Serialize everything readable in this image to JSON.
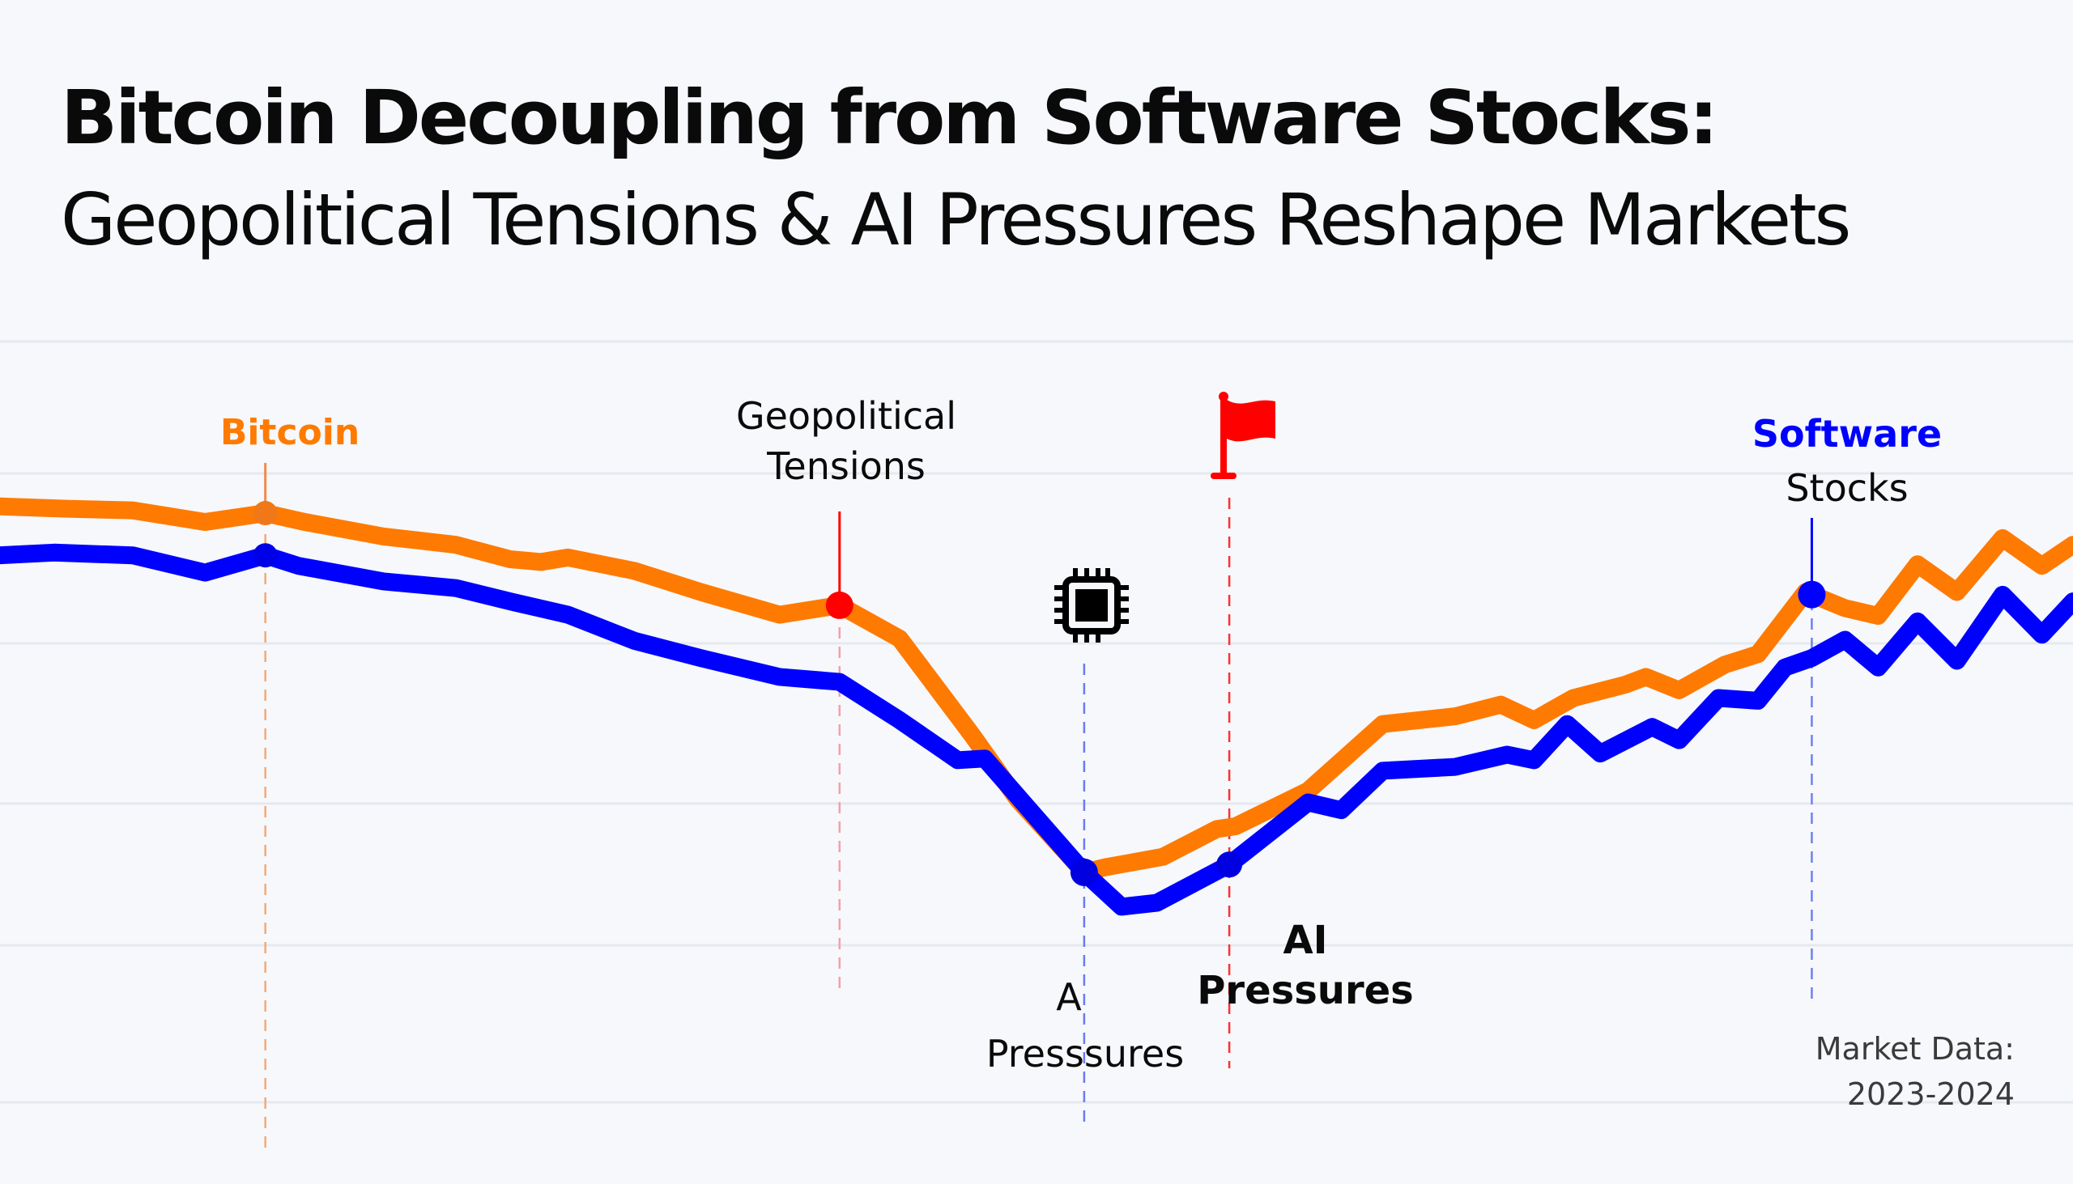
{
  "title": "Bitcoin Decoupling from Software Stocks:",
  "subtitle": "Geopolitical Tensions & AI Pressures Reshape Markets",
  "colors": {
    "bitcoin": "#ff7a00",
    "software": "#0000ff",
    "alert": "#ff0000",
    "grid": "#e6e9ef",
    "text": "#0a0a0a"
  },
  "annotations": {
    "bitcoin_label": "Bitcoin",
    "geopolitical_line1": "Geopolitical",
    "geopolitical_line2": "Tensions",
    "software_line1": "Software",
    "software_line2": "Stocks",
    "ai_left_line1": "A",
    "ai_left_line2": "Presssures",
    "ai_right_line1": "AI",
    "ai_right_line2": "Pressures",
    "icons": [
      "cpu-chip-icon",
      "red-flag-icon"
    ]
  },
  "footnote": {
    "line1": "Market Data:",
    "line2": "2023-2024"
  },
  "chart_data": {
    "type": "line",
    "title": "Bitcoin Decoupling from Software Stocks: Geopolitical Tensions & AI Pressures Reshape Markets",
    "xlabel": "",
    "ylabel": "",
    "xlim": [
      0,
      100
    ],
    "ylim": [
      0,
      100
    ],
    "grid": true,
    "x_axis_note": "Market Data: 2023-2024",
    "series": [
      {
        "name": "Bitcoin",
        "color": "#ff7a00",
        "x": [
          0,
          3.2,
          6.4,
          9.9,
          12.8,
          14.7,
          18.5,
          22.0,
          24.6,
          26.1,
          27.4,
          30.6,
          33.8,
          37.6,
          40.5,
          43.4,
          46.9,
          49.1,
          52.3,
          53.3,
          56.1,
          58.7,
          59.6,
          63.1,
          66.7,
          70.2,
          72.4,
          74.0,
          75.9,
          78.4,
          79.4,
          81.0,
          83.2,
          84.8,
          87.1,
          89.0,
          90.6,
          92.5,
          94.4,
          96.6,
          98.5,
          100
        ],
        "y": [
          80.2,
          79.8,
          79.5,
          77.4,
          79.0,
          77.4,
          74.8,
          73.3,
          70.7,
          70.2,
          71.0,
          68.6,
          64.8,
          60.7,
          62.4,
          56.4,
          39.0,
          27.4,
          14.3,
          15.2,
          17.1,
          22.1,
          22.6,
          29.0,
          41.0,
          42.4,
          44.5,
          41.7,
          45.7,
          48.1,
          49.5,
          47.1,
          51.7,
          53.6,
          64.8,
          61.9,
          60.5,
          69.8,
          64.8,
          74.5,
          69.5,
          73.3
        ]
      },
      {
        "name": "Software Stocks",
        "color": "#0000ff",
        "x": [
          0,
          2.6,
          6.4,
          9.9,
          12.8,
          14.4,
          18.5,
          22.0,
          24.6,
          27.4,
          30.6,
          33.8,
          37.6,
          40.5,
          43.4,
          46.2,
          47.5,
          52.3,
          54.1,
          55.8,
          59.3,
          63.1,
          64.7,
          66.7,
          70.2,
          72.7,
          74.0,
          75.6,
          77.2,
          79.7,
          81.0,
          82.9,
          84.8,
          86.1,
          87.4,
          89.0,
          90.6,
          92.5,
          94.4,
          96.6,
          98.5,
          100
        ],
        "y": [
          71.4,
          71.9,
          71.4,
          68.3,
          71.4,
          69.5,
          66.7,
          65.5,
          63.1,
          60.7,
          56.0,
          52.9,
          49.5,
          48.6,
          41.7,
          34.5,
          34.8,
          14.3,
          8.1,
          8.8,
          15.7,
          26.9,
          25.5,
          32.6,
          33.3,
          35.5,
          34.5,
          41.0,
          35.7,
          40.5,
          38.1,
          45.7,
          45.2,
          51.2,
          52.9,
          56.2,
          51.2,
          59.5,
          52.4,
          64.3,
          57.1,
          63.1
        ]
      }
    ],
    "annotations": [
      {
        "label": "Bitcoin",
        "series": "Bitcoin",
        "x": 12.8,
        "color": "#ff7a00"
      },
      {
        "label": "Geopolitical Tensions",
        "series": "Bitcoin",
        "x": 40.5,
        "marker_color": "#ff0000"
      },
      {
        "label": "A Presssures",
        "series": "Software Stocks",
        "x": 52.3,
        "icon": "cpu-chip-icon"
      },
      {
        "label": "AI Pressures",
        "series": "Software Stocks",
        "x": 59.3,
        "icon": "red-flag-icon"
      },
      {
        "label": "Software Stocks",
        "series": "Software Stocks",
        "x": 87.4,
        "color": "#0000ff"
      }
    ]
  }
}
